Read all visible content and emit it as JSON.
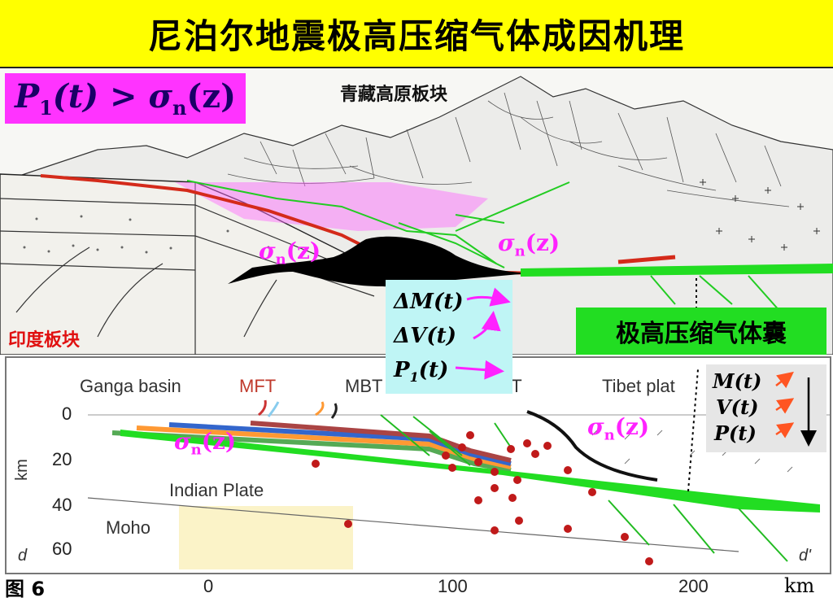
{
  "title": "尼泊尔地震极高压缩气体成因机理",
  "formula": {
    "p": "P",
    "sub1": "1",
    "t": "(t) > ",
    "sigma": "σ",
    "subn": "n",
    "z": "(z)"
  },
  "plate_labels": {
    "tibet": "青藏高原板块",
    "india": "印度板块"
  },
  "gas_label": "极高压缩气体囊",
  "sigma_label": {
    "sigma": "σ",
    "sub": "n",
    "z": "(z)"
  },
  "cyan_box": [
    {
      "label": "ΔM(t)"
    },
    {
      "label": "ΔV(t)"
    },
    {
      "label": "P",
      "sub": "1",
      "rest": "(t)"
    }
  ],
  "gray_box": [
    {
      "label": "M(t)"
    },
    {
      "label": "V(t)"
    },
    {
      "label": "P(t)"
    }
  ],
  "section": {
    "top_labels": {
      "ganga": "Ganga basin",
      "mft": "MFT",
      "mbt": "MBT",
      "mct": "MCT",
      "tibet": "Tibet plat"
    },
    "indian_plate": "Indian Plate",
    "moho": "Moho",
    "y_axis_label": "km",
    "y_ticks": [
      "0",
      "20",
      "40",
      "60"
    ],
    "y_corner": "d",
    "x_ticks": [
      "0",
      "100",
      "200"
    ],
    "x_unit": "km",
    "corner_right": "d'"
  },
  "figure_label": "图 6",
  "colors": {
    "title_bg": "#ffff00",
    "formula_bg": "#ff33ff",
    "gas_green": "#22dd22",
    "cyan_box": "#bff5f5",
    "sigma_text": "#ff22ff",
    "india_red": "#e01010"
  }
}
